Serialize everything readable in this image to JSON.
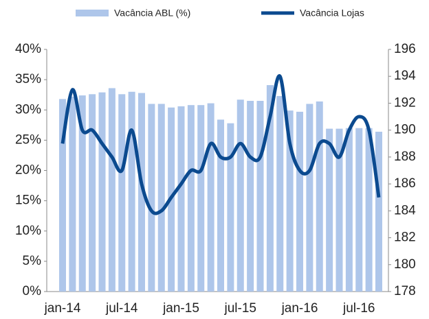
{
  "chart_data": {
    "type": "bar_line",
    "categories": [
      "jan-14",
      null,
      null,
      null,
      null,
      null,
      "jul-14",
      null,
      null,
      null,
      null,
      null,
      "jan-15",
      null,
      null,
      null,
      null,
      null,
      "jul-15",
      null,
      null,
      null,
      null,
      null,
      "jan-16",
      null,
      null,
      null,
      null,
      null,
      "jul-16",
      null,
      null
    ],
    "series": [
      {
        "name": "Vacância ABL (%)",
        "color": "#aec6ea",
        "kind": "bar",
        "values": [
          31.8,
          32.2,
          32.4,
          32.6,
          32.9,
          33.6,
          32.6,
          33.0,
          32.8,
          31.0,
          31.0,
          30.4,
          30.6,
          30.8,
          30.8,
          31.1,
          28.4,
          27.8,
          31.7,
          31.5,
          31.5,
          34.1,
          32.3,
          29.9,
          29.7,
          31.0,
          31.4,
          26.9,
          26.9,
          27.0,
          27.0,
          27.0,
          26.4
        ]
      },
      {
        "name": "Vacância Lojas",
        "color": "#0b4a8f",
        "kind": "line",
        "axis": "y2",
        "values": [
          189,
          193,
          190,
          190,
          189,
          188,
          187,
          190,
          186,
          184,
          184,
          185,
          186,
          187,
          187,
          189,
          188,
          188,
          189,
          188,
          188,
          191,
          194,
          189,
          187,
          187,
          189,
          189,
          188,
          190,
          191,
          190,
          185
        ]
      }
    ],
    "ylim": [
      0,
      40
    ],
    "yticks": [
      {
        "value": 0,
        "label": "0%"
      },
      {
        "value": 5,
        "label": "5%"
      },
      {
        "value": 10,
        "label": "10%"
      },
      {
        "value": 15,
        "label": "15%"
      },
      {
        "value": 20,
        "label": "20%"
      },
      {
        "value": 25,
        "label": "25%"
      },
      {
        "value": 30,
        "label": "30%"
      },
      {
        "value": 35,
        "label": "35%"
      },
      {
        "value": 40,
        "label": "40%"
      }
    ],
    "y2lim": [
      178,
      196
    ],
    "y2ticks": [
      178,
      180,
      182,
      184,
      186,
      188,
      190,
      192,
      194,
      196
    ],
    "legend": "top"
  }
}
